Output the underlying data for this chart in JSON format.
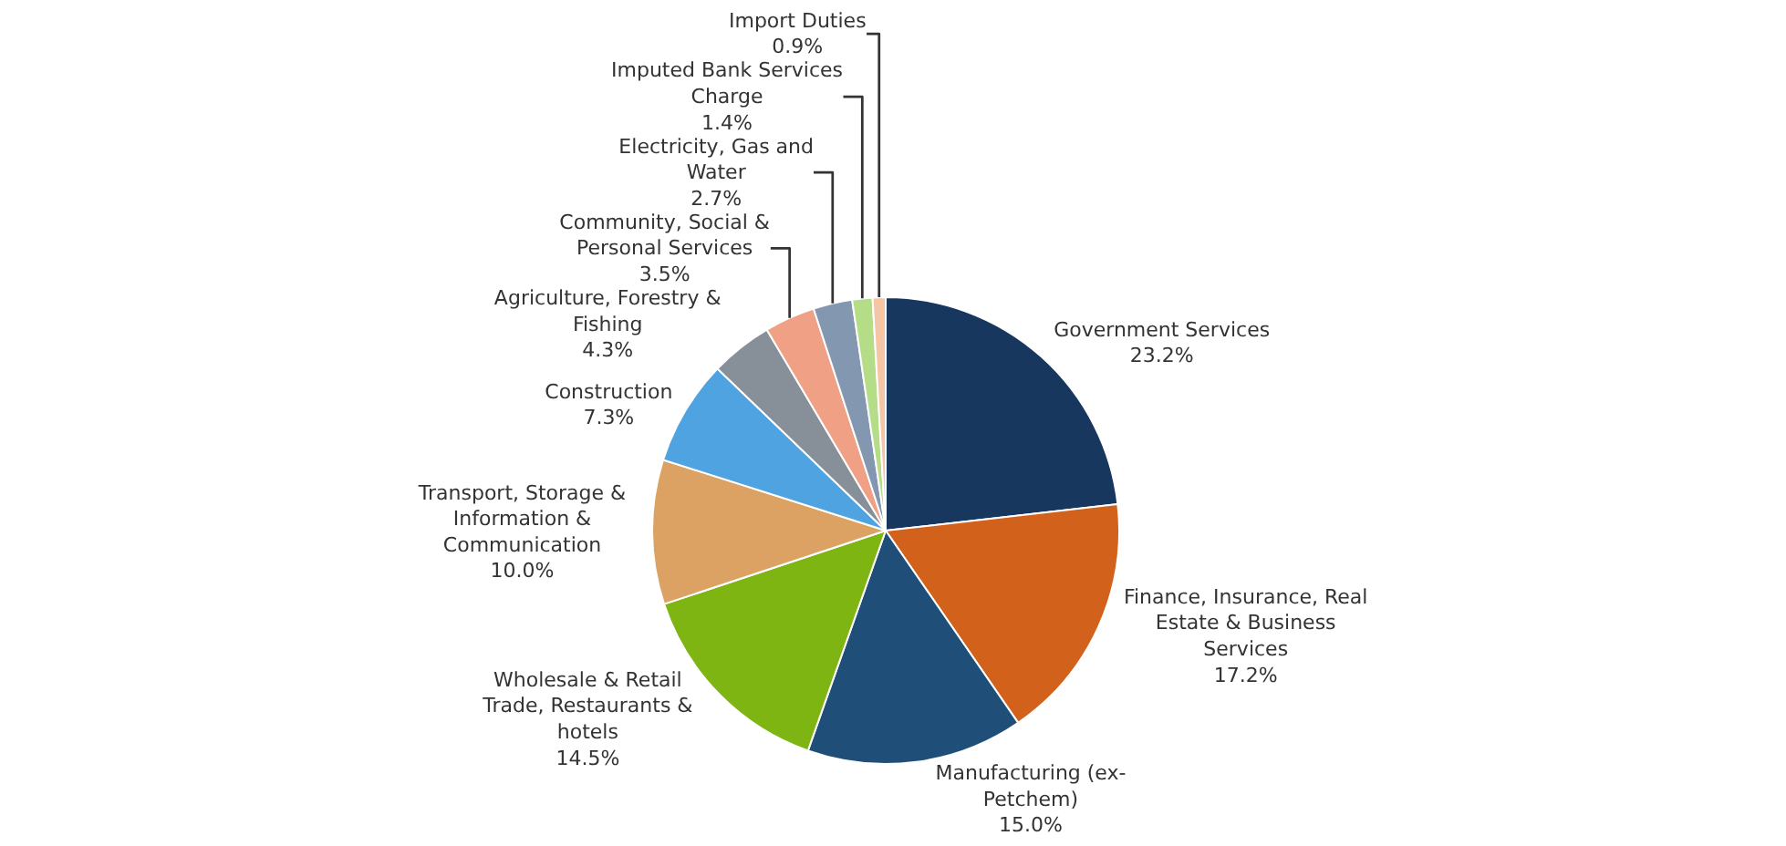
{
  "chart_data": {
    "type": "pie",
    "categories": [
      "Government Services",
      "Finance, Insurance, Real Estate & Business Services",
      "Manufacturing (ex-Petchem)",
      "Wholesale & Retail Trade, Restaurants & hotels",
      "Transport, Storage & Information & Communication",
      "Construction",
      "Agriculture, Forestry & Fishing",
      "Community, Social & Personal Services",
      "Electricity, Gas and Water",
      "Imputed Bank Services Charge",
      "Import Duties"
    ],
    "values": [
      23.2,
      17.2,
      15.0,
      14.5,
      10.0,
      7.3,
      4.3,
      3.5,
      2.7,
      1.4,
      0.9
    ],
    "value_labels": [
      "23.2%",
      "17.2%",
      "15.0%",
      "14.5%",
      "10.0%",
      "7.3%",
      "4.3%",
      "3.5%",
      "2.7%",
      "1.4%",
      "0.9%"
    ],
    "colors": [
      "#17375e",
      "#d2611c",
      "#1f4e79",
      "#7fb512",
      "#dba264",
      "#4fa3e0",
      "#878f99",
      "#f0a085",
      "#8497b0",
      "#b5dc87",
      "#f6c6a4"
    ],
    "legend": false
  }
}
